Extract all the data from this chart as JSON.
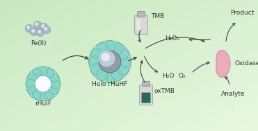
{
  "bg_color": "#c8e8c0",
  "bg_color2": "#e8f8e0",
  "text_color": "#333333",
  "teal_color": "#80d4c8",
  "teal_outline": "#50a898",
  "sphere_dark": "#909aaa",
  "sphere_mid": "#c8d4e0",
  "sphere_light": "#e8f0f8",
  "pink_color": "#f0a0b8",
  "pink_outline": "#c878a0",
  "fe_ball_color": "#aabac8",
  "fe_ball_edge": "#8898a8",
  "arrow_color": "#404040",
  "fe_text": "Fe(II)",
  "rhuif_text": "rHuIF",
  "holo_text": "Holo rHuHF",
  "tmb_text": "TMB",
  "oxtmb_text": "oxTMB",
  "h2o2_text": "H₂O₂",
  "h2o_text": "H₂O",
  "o2_text": "O₂",
  "product_text": "Product",
  "oxidase_text": "Oxidase",
  "analyte_text": "Analyte",
  "font_size": 6.5
}
